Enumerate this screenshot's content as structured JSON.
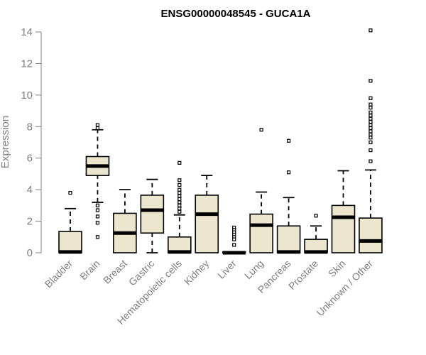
{
  "chart_data": {
    "type": "box",
    "title": "ENSG00000048545 - GUCA1A",
    "xlabel": "",
    "ylabel": "Expression",
    "ylim": [
      0,
      14.2
    ],
    "yticks": [
      0,
      2,
      4,
      6,
      8,
      10,
      12,
      14
    ],
    "ytick_labels": [
      "0",
      "2",
      "4",
      "6",
      "8",
      "10",
      "12",
      "14"
    ],
    "box_fill": "#ede6cf",
    "categories": [
      "Bladder",
      "Brain",
      "Breast",
      "Gastric",
      "Hematopoietic cells",
      "Kidney",
      "Liver",
      "Lung",
      "Pancreas",
      "Prostate",
      "Skin",
      "Unknown / Other"
    ],
    "boxes": [
      {
        "q1": 0.0,
        "median": 0.05,
        "q3": 1.35,
        "whisker_low": 0.0,
        "whisker_high": 2.8,
        "outliers": [
          3.8
        ]
      },
      {
        "q1": 4.9,
        "median": 5.5,
        "q3": 6.1,
        "whisker_low": 3.2,
        "whisker_high": 7.8,
        "outliers": [
          8.1,
          7.9,
          3.0,
          2.7,
          2.3,
          1.9,
          1.0
        ]
      },
      {
        "q1": 0.0,
        "median": 1.25,
        "q3": 2.5,
        "whisker_low": 0.0,
        "whisker_high": 4.0,
        "outliers": []
      },
      {
        "q1": 1.25,
        "median": 2.7,
        "q3": 3.65,
        "whisker_low": 0.0,
        "whisker_high": 4.65,
        "outliers": []
      },
      {
        "q1": 0.0,
        "median": 0.05,
        "q3": 1.0,
        "whisker_low": 0.0,
        "whisker_high": 2.4,
        "outliers": [
          5.7,
          4.6,
          4.3,
          4.0,
          3.8,
          3.6,
          3.4,
          3.2,
          3.0,
          2.8,
          2.6
        ]
      },
      {
        "q1": 0.0,
        "median": 2.45,
        "q3": 3.65,
        "whisker_low": 0.0,
        "whisker_high": 4.9,
        "outliers": []
      },
      {
        "q1": 0.0,
        "median": 0.0,
        "q3": 0.05,
        "whisker_low": 0.0,
        "whisker_high": 0.05,
        "outliers": [
          1.6,
          1.45,
          1.3,
          1.15,
          1.0,
          0.85,
          0.5
        ]
      },
      {
        "q1": 0.0,
        "median": 1.75,
        "q3": 2.45,
        "whisker_low": 0.0,
        "whisker_high": 3.85,
        "outliers": [
          7.8
        ]
      },
      {
        "q1": 0.0,
        "median": 0.05,
        "q3": 1.7,
        "whisker_low": 0.0,
        "whisker_high": 3.5,
        "outliers": [
          7.1,
          5.1
        ]
      },
      {
        "q1": 0.0,
        "median": 0.05,
        "q3": 0.85,
        "whisker_low": 0.0,
        "whisker_high": 1.7,
        "outliers": [
          2.35
        ]
      },
      {
        "q1": 0.0,
        "median": 2.25,
        "q3": 3.0,
        "whisker_low": 0.0,
        "whisker_high": 5.2,
        "outliers": []
      },
      {
        "q1": 0.0,
        "median": 0.75,
        "q3": 2.2,
        "whisker_low": 0.0,
        "whisker_high": 5.25,
        "outliers": [
          14.1,
          10.9,
          9.8,
          9.4,
          9.2,
          8.9,
          8.7,
          8.5,
          8.3,
          8.1,
          7.9,
          7.7,
          7.5,
          7.3,
          7.0,
          6.5,
          5.8
        ]
      }
    ]
  }
}
